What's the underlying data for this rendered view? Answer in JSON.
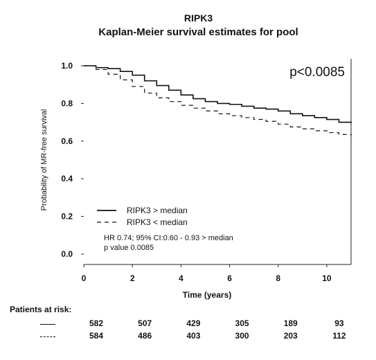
{
  "chart_data": {
    "type": "line",
    "title": "RIPK3",
    "subtitle": "Kaplan-Meier survival estimates for pool",
    "xlabel": "Time (years)",
    "ylabel": "Probability of MR-free survival",
    "xlim": [
      0,
      11
    ],
    "ylim": [
      0,
      1.0
    ],
    "x_ticks": [
      "0",
      "2",
      "4",
      "6",
      "8",
      "10"
    ],
    "y_ticks": [
      "0.0",
      "0.2",
      "0.4",
      "0.6",
      "0.8",
      "1.0"
    ],
    "grid": false,
    "legend_position": "bottom-left",
    "annotation": "p<0.0085",
    "stats_text": [
      "HR   0.74; 95% CI:0.60 - 0.93 > median",
      "p value   0.0085"
    ],
    "series": [
      {
        "name": "RIPK3 > median",
        "style": "solid",
        "x": [
          0,
          0.5,
          1,
          1.5,
          2,
          2.5,
          3,
          3.5,
          4,
          4.5,
          5,
          5.5,
          6,
          6.5,
          7,
          7.5,
          8,
          8.5,
          9,
          9.5,
          10,
          10.5,
          11
        ],
        "y": [
          1.0,
          0.99,
          0.985,
          0.97,
          0.95,
          0.92,
          0.895,
          0.87,
          0.845,
          0.825,
          0.81,
          0.8,
          0.795,
          0.785,
          0.775,
          0.77,
          0.76,
          0.745,
          0.735,
          0.725,
          0.715,
          0.7,
          0.695
        ]
      },
      {
        "name": "RIPK3 < median",
        "style": "dashed",
        "x": [
          0,
          0.5,
          1,
          1.5,
          2,
          2.5,
          3,
          3.5,
          4,
          4.5,
          5,
          5.5,
          6,
          6.5,
          7,
          7.5,
          8,
          8.5,
          9,
          9.5,
          10,
          10.5,
          11
        ],
        "y": [
          1.0,
          0.98,
          0.955,
          0.925,
          0.89,
          0.855,
          0.83,
          0.81,
          0.79,
          0.775,
          0.76,
          0.745,
          0.735,
          0.725,
          0.715,
          0.705,
          0.69,
          0.675,
          0.665,
          0.655,
          0.645,
          0.635,
          0.625
        ]
      }
    ],
    "risk_table": {
      "label": "Patients at risk:",
      "times": [
        0,
        2,
        4,
        6,
        8,
        10
      ],
      "rows": [
        {
          "style": "solid",
          "values": [
            "582",
            "507",
            "429",
            "305",
            "189",
            "93"
          ]
        },
        {
          "style": "dashed",
          "values": [
            "584",
            "486",
            "403",
            "300",
            "203",
            "112"
          ]
        }
      ]
    }
  }
}
